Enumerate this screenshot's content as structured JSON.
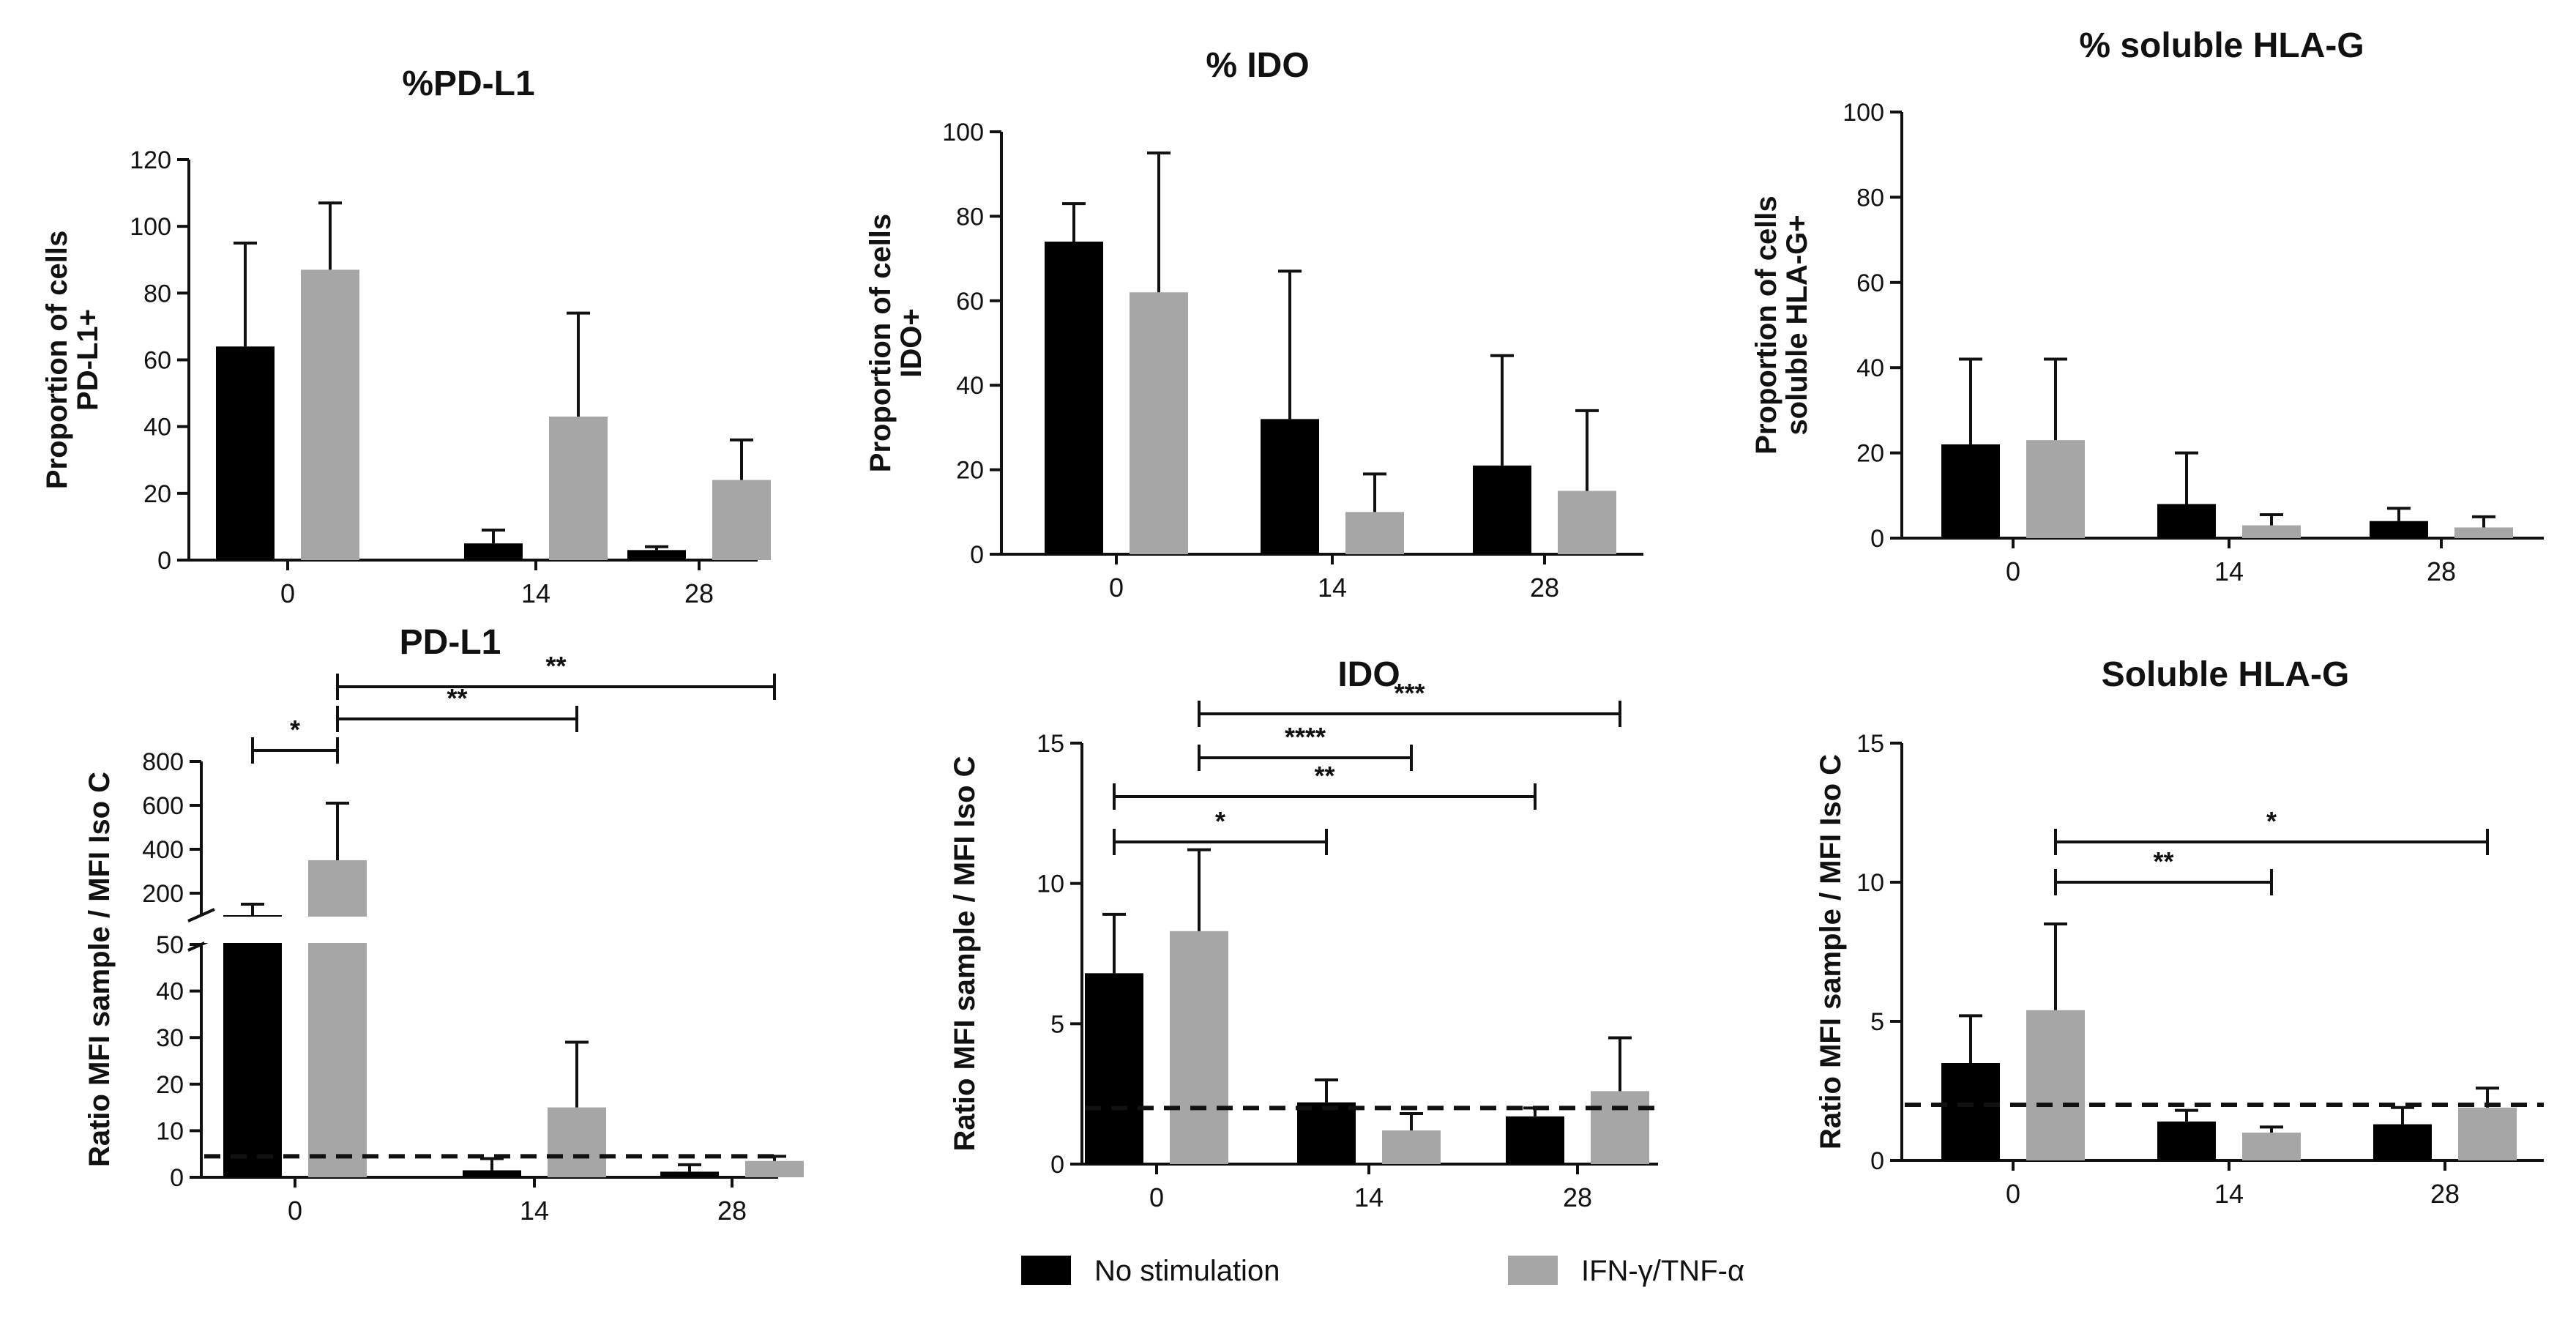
{
  "legend": {
    "items": [
      {
        "label": "No stimulation",
        "color": "#000000"
      },
      {
        "label": "IFN-γ/TNF-α",
        "color": "#a6a6a6"
      }
    ]
  },
  "colors": {
    "no_stim": "#000000",
    "stim": "#a6a6a6",
    "axis": "#111111"
  },
  "chart_data": [
    {
      "type": "bar",
      "title": "%PD-L1",
      "ylabel_lines": [
        "Proportion of cells",
        "PD-L1+"
      ],
      "categories": [
        "0",
        "14",
        "28"
      ],
      "ylim": [
        0,
        120
      ],
      "yticks": [
        0,
        20,
        40,
        60,
        80,
        100,
        120
      ],
      "series": [
        {
          "name": "No stimulation",
          "values": [
            64,
            5,
            3
          ],
          "errors": [
            31,
            4,
            1
          ]
        },
        {
          "name": "IFN-γ/TNF-α",
          "values": [
            87,
            43,
            24
          ],
          "errors": [
            20,
            31,
            12
          ]
        }
      ],
      "significance": []
    },
    {
      "type": "bar",
      "title": "% IDO",
      "ylabel_lines": [
        "Proportion of cells",
        "IDO+"
      ],
      "categories": [
        "0",
        "14",
        "28"
      ],
      "ylim": [
        0,
        100
      ],
      "yticks": [
        0,
        20,
        40,
        60,
        80,
        100
      ],
      "series": [
        {
          "name": "No stimulation",
          "values": [
            74,
            32,
            21
          ],
          "errors": [
            9,
            35,
            26
          ]
        },
        {
          "name": "IFN-γ/TNF-α",
          "values": [
            62,
            10,
            15
          ],
          "errors": [
            33,
            9,
            19
          ]
        }
      ],
      "significance": []
    },
    {
      "type": "bar",
      "title": "% soluble HLA-G",
      "ylabel_lines": [
        "Proportion of cells",
        "soluble HLA-G+"
      ],
      "categories": [
        "0",
        "14",
        "28"
      ],
      "ylim": [
        0,
        100
      ],
      "yticks": [
        0,
        20,
        40,
        60,
        80,
        100
      ],
      "series": [
        {
          "name": "No stimulation",
          "values": [
            22,
            8,
            4
          ],
          "errors": [
            20,
            12,
            3
          ]
        },
        {
          "name": "IFN-γ/TNF-α",
          "values": [
            23,
            3,
            2.5
          ],
          "errors": [
            19,
            2.5,
            2.5
          ]
        }
      ],
      "significance": []
    },
    {
      "type": "bar",
      "title": "PD-L1",
      "ylabel_lines": [
        "Ratio MFI sample / MFI Iso C"
      ],
      "categories": [
        "0",
        "14",
        "28"
      ],
      "ylim": [
        0,
        800
      ],
      "axis_break": [
        50,
        100
      ],
      "yticks": [
        0,
        10,
        20,
        30,
        40,
        50,
        200,
        400,
        600,
        800
      ],
      "threshold": 4.5,
      "series": [
        {
          "name": "No stimulation",
          "values": [
            100,
            1.5,
            1.2
          ],
          "errors": [
            50,
            2.5,
            1.5
          ]
        },
        {
          "name": "IFN-γ/TNF-α",
          "values": [
            350,
            15,
            3.5
          ],
          "errors": [
            260,
            14,
            1
          ]
        }
      ],
      "significance": [
        {
          "label": "*",
          "from": [
            0,
            0
          ],
          "to": [
            0,
            1
          ]
        },
        {
          "label": "**",
          "from": [
            0,
            1
          ],
          "to": [
            1,
            1
          ]
        },
        {
          "label": "**",
          "from": [
            0,
            1
          ],
          "to": [
            2,
            1
          ]
        }
      ]
    },
    {
      "type": "bar",
      "title": "IDO",
      "ylabel_lines": [
        "Ratio MFI sample / MFI Iso C"
      ],
      "categories": [
        "0",
        "14",
        "28"
      ],
      "ylim": [
        0,
        15
      ],
      "yticks": [
        0,
        5,
        10,
        15
      ],
      "threshold": 2,
      "series": [
        {
          "name": "No stimulation",
          "values": [
            6.8,
            2.2,
            1.7
          ],
          "errors": [
            2.1,
            0.8,
            0.3
          ]
        },
        {
          "name": "IFN-γ/TNF-α",
          "values": [
            8.3,
            1.2,
            2.6
          ],
          "errors": [
            2.9,
            0.6,
            1.9
          ]
        }
      ],
      "significance": [
        {
          "label": "*",
          "from": [
            0,
            0
          ],
          "to": [
            1,
            0
          ]
        },
        {
          "label": "**",
          "from": [
            0,
            0
          ],
          "to": [
            2,
            0
          ]
        },
        {
          "label": "****",
          "from": [
            0,
            1
          ],
          "to": [
            1,
            1
          ]
        },
        {
          "label": "***",
          "from": [
            0,
            1
          ],
          "to": [
            2,
            1
          ]
        }
      ]
    },
    {
      "type": "bar",
      "title": "Soluble HLA-G",
      "ylabel_lines": [
        "Ratio MFI sample / MFI Iso C"
      ],
      "categories": [
        "0",
        "14",
        "28"
      ],
      "ylim": [
        0,
        15
      ],
      "yticks": [
        0,
        5,
        10,
        15
      ],
      "threshold": 2,
      "series": [
        {
          "name": "No stimulation",
          "values": [
            3.5,
            1.4,
            1.3
          ],
          "errors": [
            1.7,
            0.4,
            0.6
          ]
        },
        {
          "name": "IFN-γ/TNF-α",
          "values": [
            5.4,
            1.0,
            1.9
          ],
          "errors": [
            3.1,
            0.2,
            0.7
          ]
        }
      ],
      "significance": [
        {
          "label": "**",
          "from": [
            0,
            1
          ],
          "to": [
            1,
            1
          ]
        },
        {
          "label": "*",
          "from": [
            0,
            1
          ],
          "to": [
            2,
            1
          ]
        }
      ]
    }
  ]
}
